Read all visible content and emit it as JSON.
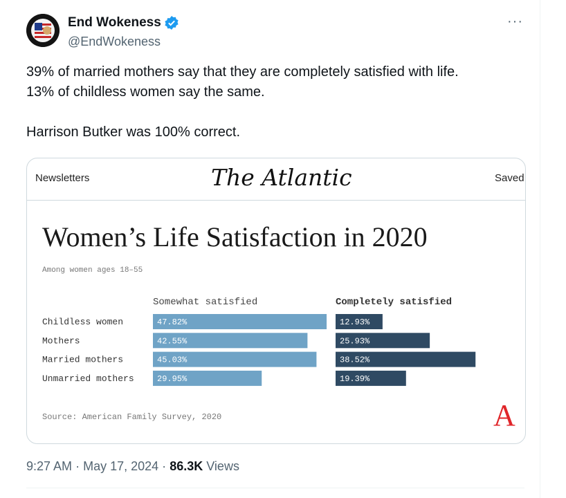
{
  "tweet": {
    "author_name": "End Wokeness",
    "handle": "@EndWokeness",
    "more_label": "···",
    "text_line1": "39% of married mothers say that they are completely satisfied with life.",
    "text_line2": "13% of childless women say the same.",
    "text_line3": "Harrison Butker was 100% correct.",
    "time": "9:27 AM",
    "date": "May 17, 2024",
    "separator": "·",
    "views_count": "86.3K",
    "views_label": "Views",
    "verified_color": "#1d9bf0"
  },
  "card": {
    "left_label": "Newsletters",
    "masthead": "The Atlantic",
    "right_label": "Saved",
    "logo_letter": "A"
  },
  "chart_data": {
    "type": "bar",
    "title": "Women’s Life Satisfaction in 2020",
    "subtitle": "Among women ages 18–55",
    "categories": [
      "Childless women",
      "Mothers",
      "Married mothers",
      "Unmarried mothers"
    ],
    "series": [
      {
        "name": "Somewhat satisfied",
        "values": [
          47.82,
          42.55,
          45.03,
          29.95
        ],
        "labels": [
          "47.82%",
          "42.55%",
          "45.03%",
          "29.95%"
        ],
        "color": "#6fa3c6"
      },
      {
        "name": "Completely satisfied",
        "values": [
          12.93,
          25.93,
          38.52,
          19.39
        ],
        "labels": [
          "12.93%",
          "25.93%",
          "38.52%",
          "19.39%"
        ],
        "color": "#2f4a63"
      }
    ],
    "source": "Source: American Family Survey, 2020"
  }
}
